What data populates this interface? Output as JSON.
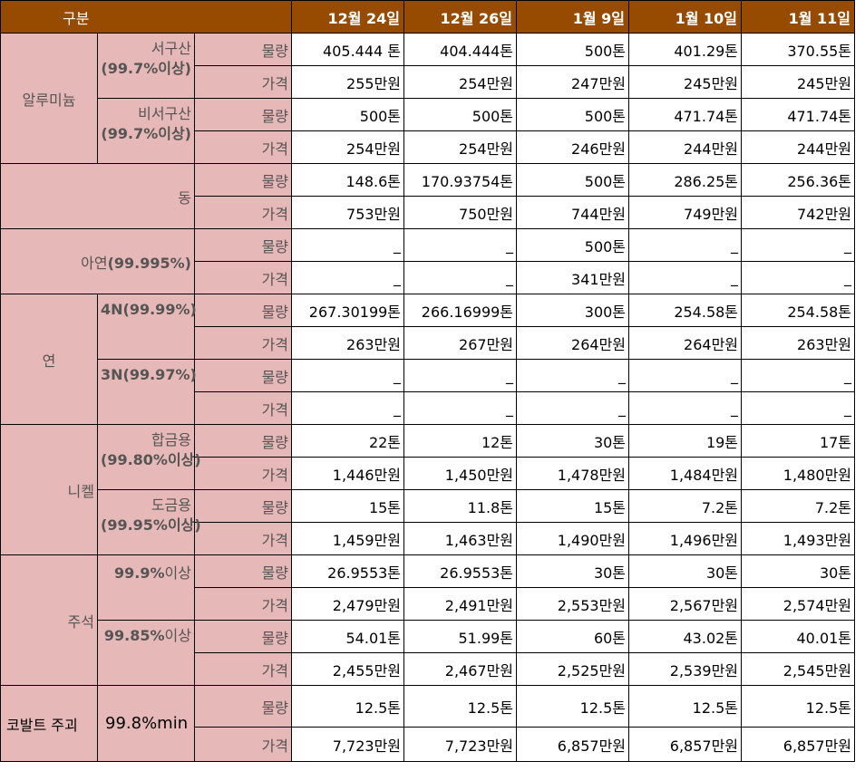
{
  "header": {
    "corner": "구분",
    "dates": [
      "12월 24일",
      "12월 26일",
      "1월 9일",
      "1월 10일",
      "1월 11일"
    ]
  },
  "labels": {
    "qty": "물량",
    "price": "가격"
  },
  "aluminum": {
    "name": "알루미늄",
    "west": {
      "name": "서구산",
      "purity": "(99.7%이상)",
      "qty": [
        "405.444 톤",
        "404.444톤",
        "500톤",
        "401.29톤",
        "370.55톤"
      ],
      "price": [
        "255만원",
        "254만원",
        "247만원",
        "245만원",
        "245만원"
      ]
    },
    "nonwest": {
      "name": "비서구산",
      "purity": "(99.7%이상)",
      "qty": [
        "500톤",
        "500톤",
        "500톤",
        "471.74톤",
        "471.74톤"
      ],
      "price": [
        "254만원",
        "254만원",
        "246만원",
        "244만원",
        "244만원"
      ]
    }
  },
  "copper": {
    "name": "동",
    "qty": [
      "148.6톤",
      "170.93754톤",
      "500톤",
      "286.25톤",
      "256.36톤"
    ],
    "price": [
      "753만원",
      "750만원",
      "744만원",
      "749만원",
      "742만원"
    ]
  },
  "zinc": {
    "name": "아연",
    "purity": "(99.995%)",
    "qty": [
      "_",
      "_",
      "500톤",
      "_",
      "_"
    ],
    "price": [
      "_",
      "_",
      "341만원",
      "_",
      "_"
    ]
  },
  "lead": {
    "name": "연",
    "n4": {
      "name": "4N(99.99%)",
      "qty": [
        "267.30199톤",
        "266.16999톤",
        "300톤",
        "254.58톤",
        "254.58톤"
      ],
      "price": [
        "263만원",
        "267만원",
        "264만원",
        "264만원",
        "263만원"
      ]
    },
    "n3": {
      "name": "3N(99.97%)",
      "qty": [
        "_",
        "_",
        "_",
        "_",
        "_"
      ],
      "price": [
        "_",
        "_",
        "_",
        "_",
        "_"
      ]
    }
  },
  "nickel": {
    "name": "니켈",
    "alloy": {
      "name": "합금용",
      "purity": "(99.80%이상)",
      "qty": [
        "22톤",
        "12톤",
        "30톤",
        "19톤",
        "17톤"
      ],
      "price": [
        "1,446만원",
        "1,450만원",
        "1,478만원",
        "1,484만원",
        "1,480만원"
      ]
    },
    "plating": {
      "name": "도금용",
      "purity": "(99.95%이상)",
      "qty": [
        "15톤",
        "11.8톤",
        "15톤",
        "7.2톤",
        "7.2톤"
      ],
      "price": [
        "1,459만원",
        "1,463만원",
        "1,490만원",
        "1,496만원",
        "1,493만원"
      ]
    }
  },
  "tin": {
    "name": "주석",
    "a": {
      "name_bold": "99.9%",
      "name_rest": "이상",
      "qty": [
        "26.9553톤",
        "26.9553톤",
        "30톤",
        "30톤",
        "30톤"
      ],
      "price": [
        "2,479만원",
        "2,491만원",
        "2,553만원",
        "2,567만원",
        "2,574만원"
      ]
    },
    "b": {
      "name_bold": "99.85%",
      "name_rest": "이상",
      "qty": [
        "54.01톤",
        "51.99톤",
        "60톤",
        "43.02톤",
        "40.01톤"
      ],
      "price": [
        "2,455만원",
        "2,467만원",
        "2,525만원",
        "2,539만원",
        "2,545만원"
      ]
    }
  },
  "cobalt": {
    "name": "코발트 주괴",
    "purity": "99.8%min",
    "qty": [
      "12.5톤",
      "12.5톤",
      "12.5톤",
      "12.5톤",
      "12.5톤"
    ],
    "price": [
      "7,723만원",
      "7,723만원",
      "6,857만원",
      "6,857만원",
      "6,857만원"
    ]
  }
}
